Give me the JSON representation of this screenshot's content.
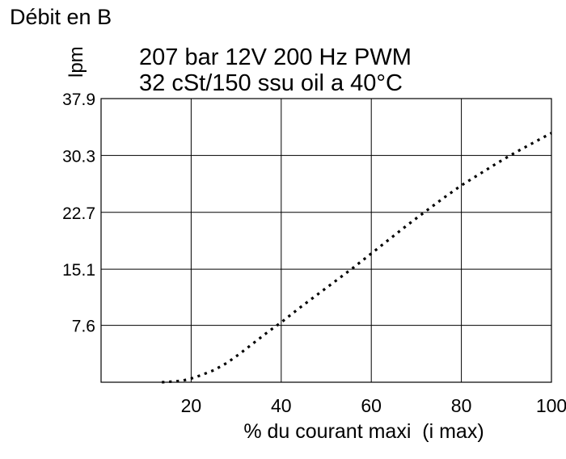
{
  "page_title": "Débit en B",
  "chart_data": {
    "type": "line",
    "title_lines": [
      "207 bar 12V 200 Hz PWM",
      "32 cSt/150 ssu oil a 40°C"
    ],
    "ylabel": "lpm",
    "xlabel": "% du courant maxi  (i max)",
    "xlim": [
      0,
      100
    ],
    "ylim": [
      0,
      37.9
    ],
    "x_ticks": [
      20,
      40,
      60,
      80,
      100
    ],
    "x_tick_labels": [
      "20",
      "40",
      "60",
      "80",
      "100"
    ],
    "y_ticks": [
      7.6,
      15.1,
      22.7,
      30.3,
      37.9
    ],
    "y_tick_labels": [
      "7.6",
      "15.1",
      "22.7",
      "30.3",
      "37.9"
    ],
    "grid": true,
    "line_style": "dotted",
    "series": [
      {
        "x": [
          13.5,
          16,
          18,
          20,
          22,
          25,
          28,
          31,
          34,
          37,
          40,
          44,
          48,
          52,
          56,
          60,
          64,
          68,
          72,
          76,
          80,
          84,
          88,
          92,
          96,
          100
        ],
        "y": [
          0,
          0.1,
          0.2,
          0.5,
          0.9,
          1.6,
          2.6,
          3.9,
          5.3,
          6.7,
          8.0,
          9.9,
          11.7,
          13.5,
          15.3,
          17.2,
          19.1,
          21.0,
          22.8,
          24.6,
          26.3,
          27.8,
          29.3,
          30.7,
          32.0,
          33.3
        ]
      }
    ]
  }
}
